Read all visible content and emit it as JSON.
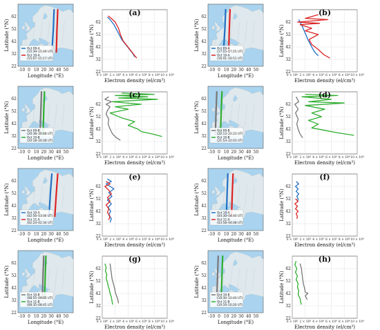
{
  "colors": {
    "sea": "#a9d3ee",
    "land": "#dfe8ec",
    "land_stroke": "#b9c7cf",
    "grid": "#d8d8d8",
    "blue": "#1f6fc4",
    "red": "#dd2222",
    "green": "#2fae2f",
    "gray": "#777777"
  },
  "labels": {
    "map_xlabel": "Longitude (°E)",
    "map_ylabel": "Latitude (°N)",
    "density_xlabel": "Electron density (el/cm³)",
    "density_ylabel": "Latitude (°N)"
  },
  "map_axes": {
    "xticks": [
      "-10",
      "0",
      "10",
      "20",
      "30",
      "40",
      "50"
    ],
    "yticks": [
      "62",
      "52",
      "42",
      "32",
      "22"
    ]
  },
  "density_axes": {
    "xticks": [
      "0 × 10⁰",
      "2 × 10⁴",
      "4 × 10⁴",
      "6 × 10⁴",
      "8 × 10⁴",
      "10 × 10⁴"
    ],
    "yticks": [
      "62",
      "52",
      "42",
      "32",
      "22"
    ]
  },
  "chart_data": [
    {
      "id": "a",
      "type": "line",
      "xlabel": "Electron density (el/cm³)",
      "ylabel": "Latitude (°N)",
      "xlim": [
        0,
        100000
      ],
      "ylim": [
        22,
        72
      ],
      "legend": [
        "Oct 09-A (15:39–15:49 UT)",
        "Oct 10-A (15:07–15:17 UT)"
      ],
      "series": [
        {
          "name": "Oct 09-A (15:39–15:49 UT)",
          "color": "blue",
          "lon": [
            31,
            33,
            34
          ],
          "points": [
            [
              8000,
              66
            ],
            [
              12000,
              64
            ],
            [
              18000,
              60
            ],
            [
              22000,
              56
            ],
            [
              26000,
              52
            ],
            [
              30000,
              48
            ],
            [
              36000,
              44
            ],
            [
              42000,
              40
            ],
            [
              48000,
              36
            ],
            [
              50000,
              34
            ]
          ]
        },
        {
          "name": "Oct 10-A (15:07–15:17 UT)",
          "color": "red",
          "lon": [
            37,
            38,
            39
          ],
          "points": [
            [
              9000,
              67
            ],
            [
              14000,
              65
            ],
            [
              20000,
              62
            ],
            [
              25000,
              57
            ],
            [
              28000,
              52
            ],
            [
              32000,
              47
            ],
            [
              38000,
              43
            ],
            [
              44000,
              39
            ],
            [
              50000,
              35
            ],
            [
              53000,
              33
            ]
          ]
        }
      ]
    },
    {
      "id": "b",
      "type": "line",
      "xlabel": "Electron density (el/cm³)",
      "ylabel": "Latitude (°N)",
      "xlim": [
        0,
        100000
      ],
      "ylim": [
        22,
        72
      ],
      "legend": [
        "Oct 09-A (17:15–17:25 UT)",
        "Oct 10-A (16:41–16:51 UT)"
      ],
      "series": [
        {
          "name": "Oct 09-A (17:15–17:25 UT)",
          "color": "blue",
          "lon": [
            6,
            8,
            9
          ],
          "points": [
            [
              10000,
              64
            ],
            [
              12000,
              62
            ],
            [
              16000,
              58
            ],
            [
              20000,
              53
            ],
            [
              24000,
              48
            ],
            [
              28000,
              44
            ],
            [
              32000,
              40
            ],
            [
              36000,
              37
            ],
            [
              40000,
              35
            ]
          ]
        },
        {
          "name": "Oct 10-A (16:41–16:51 UT)",
          "color": "red",
          "lon": [
            13,
            14,
            15
          ],
          "points": [
            [
              40000,
              68
            ],
            [
              20000,
              65
            ],
            [
              55000,
              64
            ],
            [
              8000,
              62
            ],
            [
              42000,
              61
            ],
            [
              12000,
              60
            ],
            [
              30000,
              57
            ],
            [
              20000,
              55
            ],
            [
              40000,
              52
            ],
            [
              26000,
              48
            ],
            [
              30000,
              44
            ],
            [
              40000,
              40
            ],
            [
              48000,
              36
            ],
            [
              58000,
              33
            ]
          ]
        }
      ]
    },
    {
      "id": "c",
      "type": "line",
      "xlabel": "Electron density (el/cm³)",
      "ylabel": "Latitude (°N)",
      "xlim": [
        0,
        100000
      ],
      "ylim": [
        22,
        72
      ],
      "legend": [
        "Oct 09-B (20:38–20:48 UT)",
        "Oct 10-B (20:18–20:28 UT)"
      ],
      "series": [
        {
          "name": "Oct 09-B (20:38–20:48 UT)",
          "color": "gray",
          "lon": [
            15,
            16,
            17
          ],
          "points": [
            [
              10000,
              68
            ],
            [
              4000,
              66
            ],
            [
              14000,
              64
            ],
            [
              6000,
              62
            ],
            [
              12000,
              60
            ],
            [
              8000,
              57
            ],
            [
              6000,
              54
            ],
            [
              10000,
              50
            ],
            [
              9000,
              46
            ],
            [
              12000,
              42
            ],
            [
              16000,
              38
            ],
            [
              22000,
              35
            ],
            [
              28000,
              33
            ]
          ]
        },
        {
          "name": "Oct 10-B (20:18–20:28 UT)",
          "color": "green",
          "lon": [
            19,
            20,
            21
          ],
          "points": [
            [
              30000,
              71
            ],
            [
              80000,
              70
            ],
            [
              20000,
              69
            ],
            [
              70000,
              68
            ],
            [
              25000,
              67
            ],
            [
              85000,
              66
            ],
            [
              15000,
              64
            ],
            [
              60000,
              62
            ],
            [
              20000,
              60
            ],
            [
              40000,
              58
            ],
            [
              12000,
              55
            ],
            [
              30000,
              51
            ],
            [
              50000,
              48
            ],
            [
              40000,
              45
            ],
            [
              55000,
              42
            ],
            [
              60000,
              40
            ],
            [
              78000,
              38
            ],
            [
              92000,
              36
            ]
          ]
        }
      ]
    },
    {
      "id": "d",
      "type": "line",
      "xlabel": "Electron density (el/cm³)",
      "ylabel": "Latitude (°N)",
      "xlim": [
        0,
        100000
      ],
      "ylim": [
        22,
        72
      ],
      "legend": [
        "Oct 09-B (22:13–22:23 UT)",
        "Oct 10-B (21:53–22:03 UT)"
      ],
      "series": [
        {
          "name": "Oct 09-B (22:13–22:23 UT)",
          "color": "gray",
          "lon": [
            -5,
            -4,
            -3
          ],
          "points": [
            [
              6000,
              68
            ],
            [
              10000,
              64
            ],
            [
              4000,
              62
            ],
            [
              9000,
              58
            ],
            [
              5000,
              55
            ],
            [
              9000,
              50
            ],
            [
              7000,
              46
            ],
            [
              9000,
              42
            ],
            [
              12000,
              38
            ],
            [
              16000,
              35
            ]
          ]
        },
        {
          "name": "Oct 10-B (21:53–22:03 UT)",
          "color": "green",
          "lon": [
            2,
            3,
            4
          ],
          "points": [
            [
              20000,
              70
            ],
            [
              70000,
              69
            ],
            [
              15000,
              68
            ],
            [
              60000,
              66
            ],
            [
              25000,
              64
            ],
            [
              80000,
              63
            ],
            [
              20000,
              61
            ],
            [
              50000,
              58
            ],
            [
              30000,
              55
            ],
            [
              45000,
              52
            ],
            [
              25000,
              49
            ],
            [
              40000,
              46
            ],
            [
              30000,
              43
            ],
            [
              50000,
              41
            ],
            [
              70000,
              39
            ],
            [
              95000,
              37
            ]
          ]
        }
      ]
    },
    {
      "id": "e",
      "type": "line",
      "xlabel": "Electron density (el/cm³)",
      "ylabel": "Latitude (°N)",
      "xlim": [
        0,
        100000
      ],
      "ylim": [
        22,
        72
      ],
      "legend": [
        "Oct 10-A (02:56–03:06 UT)",
        "Oct 11-A (02:24–02:34 UT)"
      ],
      "series": [
        {
          "name": "Oct 10-A (02:56–03:06 UT)",
          "color": "blue",
          "lon": [
            27,
            29,
            31
          ],
          "points": [
            [
              8000,
              68
            ],
            [
              14000,
              66
            ],
            [
              6000,
              64
            ],
            [
              12000,
              62
            ],
            [
              18000,
              60
            ],
            [
              10000,
              57
            ],
            [
              15000,
              54
            ],
            [
              8000,
              51
            ],
            [
              14000,
              48
            ],
            [
              9000,
              45
            ],
            [
              13000,
              42
            ],
            [
              10000,
              39
            ],
            [
              14000,
              36
            ],
            [
              12000,
              33
            ]
          ]
        },
        {
          "name": "Oct 11-A (02:24–02:34 UT)",
          "color": "red",
          "lon": [
            35,
            37,
            39
          ],
          "points": [
            [
              6000,
              66
            ],
            [
              12000,
              64
            ],
            [
              4000,
              62
            ],
            [
              10000,
              59
            ],
            [
              14000,
              56
            ],
            [
              8000,
              53
            ],
            [
              12000,
              50
            ],
            [
              6000,
              47
            ],
            [
              10000,
              44
            ],
            [
              8000,
              41
            ],
            [
              12000,
              38
            ],
            [
              10000,
              35
            ]
          ]
        }
      ]
    },
    {
      "id": "f",
      "type": "line",
      "xlabel": "Electron density (el/cm³)",
      "ylabel": "Latitude (°N)",
      "xlim": [
        0,
        100000
      ],
      "ylim": [
        22,
        72
      ],
      "legend": [
        "Oct 10-A (04:30–04:40 UT)",
        "Oct 11-A (03:58–04:08 UT)"
      ],
      "series": [
        {
          "name": "Oct 10-A (04:30–04:40 UT)",
          "color": "blue",
          "lon": [
            10,
            11,
            12
          ],
          "points": [
            [
              6000,
              66
            ],
            [
              10000,
              64
            ],
            [
              5000,
              62
            ],
            [
              9000,
              60
            ],
            [
              6000,
              58
            ],
            [
              10000,
              56
            ],
            [
              7000,
              54
            ],
            [
              9000,
              52
            ],
            [
              8000,
              50
            ]
          ]
        },
        {
          "name": "Oct 11-A (03:58–04:08 UT)",
          "color": "red",
          "lon": [
            17,
            18,
            19
          ],
          "points": [
            [
              5000,
              52
            ],
            [
              9000,
              50
            ],
            [
              4000,
              48
            ],
            [
              8000,
              46
            ],
            [
              5000,
              44
            ],
            [
              9000,
              42
            ],
            [
              6000,
              40
            ],
            [
              8000,
              38
            ],
            [
              7000,
              36
            ]
          ]
        }
      ]
    },
    {
      "id": "g",
      "type": "line",
      "xlabel": "Electron density (el/cm³)",
      "ylabel": "Latitude (°N)",
      "xlim": [
        0,
        100000
      ],
      "ylim": [
        22,
        72
      ],
      "legend": [
        "Oct 10-B (08:55–09:05 UT)",
        "Oct 11-B (08:35–08:45 UT)"
      ],
      "series": [
        {
          "name": "Oct 10-B (08:55–09:05 UT)",
          "color": "gray",
          "lon": [
            18,
            19,
            20
          ],
          "points": [
            [
              12000,
              66
            ],
            [
              13000,
              62
            ],
            [
              14000,
              58
            ],
            [
              15000,
              54
            ],
            [
              17000,
              50
            ],
            [
              19000,
              46
            ],
            [
              20000,
              43
            ],
            [
              22000,
              40
            ],
            [
              24000,
              37
            ],
            [
              25000,
              34
            ]
          ]
        },
        {
          "name": "Oct 11-B (08:35–08:45 UT)",
          "color": "green",
          "lon": [
            21,
            22,
            23
          ],
          "points": [
            [
              4000,
              66
            ],
            [
              6000,
              63
            ],
            [
              5000,
              60
            ],
            [
              7000,
              57
            ],
            [
              6000,
              54
            ],
            [
              8000,
              51
            ],
            [
              9000,
              48
            ],
            [
              11000,
              45
            ],
            [
              12000,
              42
            ],
            [
              14000,
              39
            ],
            [
              15000,
              36
            ],
            [
              16000,
              33
            ]
          ]
        }
      ]
    },
    {
      "id": "h",
      "type": "line",
      "xlabel": "Electron density (el/cm³)",
      "ylabel": "Latitude (°N)",
      "xlim": [
        0,
        100000
      ],
      "ylim": [
        22,
        72
      ],
      "legend": [
        "Oct 10-B (10:30–10:40 UT)",
        "Oct 11-B (10:10–10:20 UT)"
      ],
      "series": [
        {
          "name": "Oct 10-B (10:30–10:40 UT)",
          "color": "gray",
          "lon": [
            -3,
            -2,
            -1
          ],
          "points": [
            [
              12000,
              66
            ],
            [
              14000,
              62
            ],
            [
              15000,
              58
            ],
            [
              16000,
              54
            ],
            [
              17000,
              50
            ],
            [
              19000,
              46
            ],
            [
              20000,
              43
            ],
            [
              24000,
              42
            ],
            [
              20000,
              40
            ],
            [
              23000,
              37
            ]
          ]
        },
        {
          "name": "Oct 11-B (10:10–10:20 UT)",
          "color": "green",
          "lon": [
            3,
            4,
            5
          ],
          "points": [
            [
              6000,
              68
            ],
            [
              4000,
              65
            ],
            [
              7000,
              62
            ],
            [
              5000,
              59
            ],
            [
              8000,
              56
            ],
            [
              6000,
              53
            ],
            [
              9000,
              50
            ],
            [
              8000,
              47
            ],
            [
              10000,
              44
            ],
            [
              9000,
              41
            ],
            [
              12000,
              38
            ],
            [
              13000,
              35
            ],
            [
              14000,
              33
            ]
          ]
        }
      ]
    }
  ]
}
